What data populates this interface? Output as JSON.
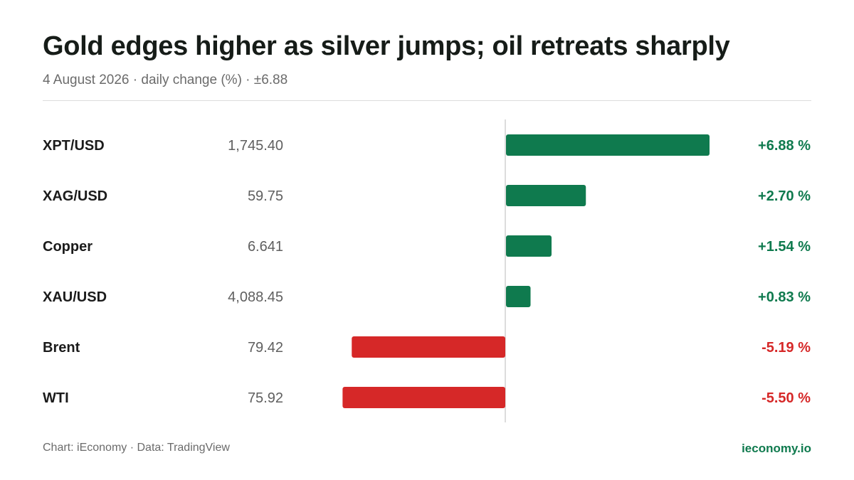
{
  "title": "Gold edges higher as silver jumps; oil retreats sharply",
  "subtitle": "4 August 2026 · daily change (%) · ±6.88",
  "footer": {
    "source": "Chart: iEconomy · Data: TradingView",
    "brand": "ieconomy.io"
  },
  "colors": {
    "positive": "#0f7a4e",
    "negative": "#d62828",
    "label": "#1b1b1b",
    "price": "#5f5f5f",
    "axis": "#d0d0d0"
  },
  "chart_data": {
    "type": "bar",
    "orientation": "horizontal",
    "title": "Gold edges higher as silver jumps; oil retreats sharply",
    "unit": "%",
    "xlim": [
      -6.88,
      6.88
    ],
    "grid": false,
    "rows": [
      {
        "label": "XPT/USD",
        "price": "1,745.40",
        "value": 6.88,
        "display": "+6.88 %"
      },
      {
        "label": "XAG/USD",
        "price": "59.75",
        "value": 2.7,
        "display": "+2.70 %"
      },
      {
        "label": "Copper",
        "price": "6.641",
        "value": 1.54,
        "display": "+1.54 %"
      },
      {
        "label": "XAU/USD",
        "price": "4,088.45",
        "value": 0.83,
        "display": "+0.83 %"
      },
      {
        "label": "Brent",
        "price": "79.42",
        "value": -5.19,
        "display": "-5.19 %"
      },
      {
        "label": "WTI",
        "price": "75.92",
        "value": -5.5,
        "display": "-5.50 %"
      }
    ]
  }
}
